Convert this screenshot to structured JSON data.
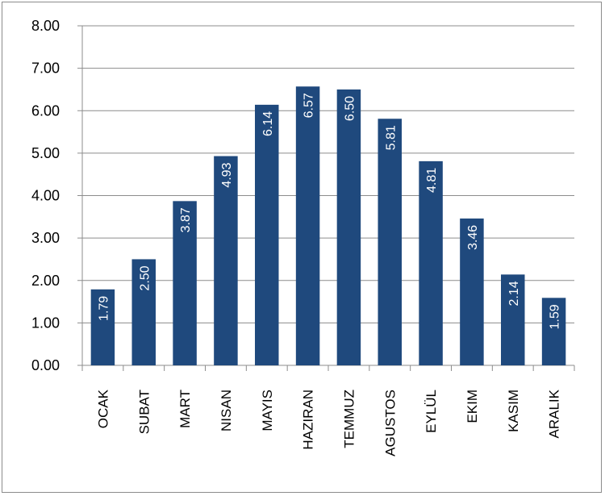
{
  "chart_data": {
    "type": "bar",
    "categories": [
      "OCAK",
      "SUBAT",
      "MART",
      "NISAN",
      "MAYIS",
      "HAZIRAN",
      "TEMMUZ",
      "AGUSTOS",
      "EYLÜL",
      "EKIM",
      "KASIM",
      "ARALIK"
    ],
    "values": [
      1.79,
      2.5,
      3.87,
      4.93,
      6.14,
      6.57,
      6.5,
      5.81,
      4.81,
      3.46,
      2.14,
      1.59
    ],
    "data_labels": [
      "1.79",
      "2.50",
      "3.87",
      "4.93",
      "6.14",
      "6.57",
      "6.50",
      "5.81",
      "4.81",
      "3.46",
      "2.14",
      "1.59"
    ],
    "ylim": [
      0,
      8
    ],
    "yticks": [
      "0.00",
      "1.00",
      "2.00",
      "3.00",
      "4.00",
      "5.00",
      "6.00",
      "7.00",
      "8.00"
    ],
    "grid": true,
    "legend": "none",
    "bar_color": "#1F497D",
    "grid_color": "#8c8c8c",
    "title": "",
    "xlabel": "",
    "ylabel": ""
  }
}
